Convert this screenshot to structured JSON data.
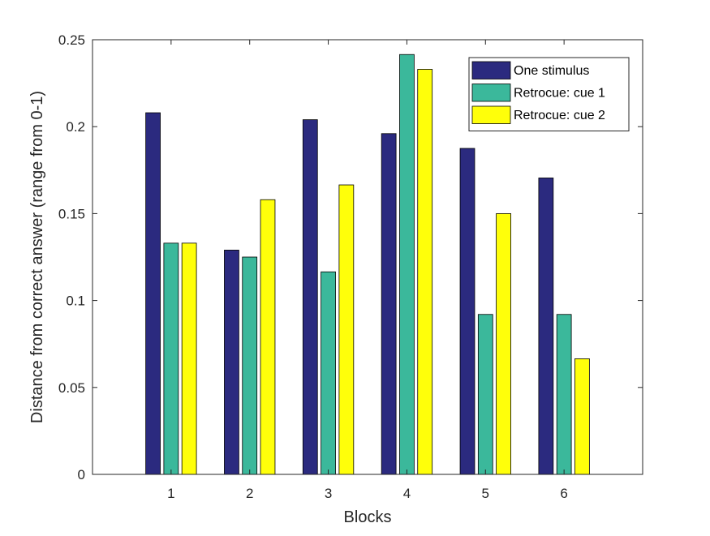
{
  "chart_data": {
    "type": "bar",
    "title": "",
    "xlabel": "Blocks",
    "ylabel": "Distance from correct answer (range from 0-1)",
    "categories": [
      "1",
      "2",
      "3",
      "4",
      "5",
      "6"
    ],
    "ylim": [
      0,
      0.25
    ],
    "yticks": [
      0,
      0.05,
      0.1,
      0.15,
      0.2,
      0.25
    ],
    "ytick_labels": [
      "0",
      "0.05",
      "0.1",
      "0.15",
      "0.2",
      "0.25"
    ],
    "grid": false,
    "legend_position": "top-right",
    "series": [
      {
        "name": "One stimulus",
        "color": "#2b2a7f",
        "values": [
          0.208,
          0.129,
          0.204,
          0.196,
          0.1875,
          0.1705
        ]
      },
      {
        "name": "Retrocue: cue 1",
        "color": "#3bb89b",
        "values": [
          0.133,
          0.125,
          0.1165,
          0.2415,
          0.092,
          0.092
        ]
      },
      {
        "name": "Retrocue: cue 2",
        "color": "#ffff0a",
        "values": [
          0.133,
          0.158,
          0.1665,
          0.233,
          0.15,
          0.0665
        ]
      }
    ]
  }
}
